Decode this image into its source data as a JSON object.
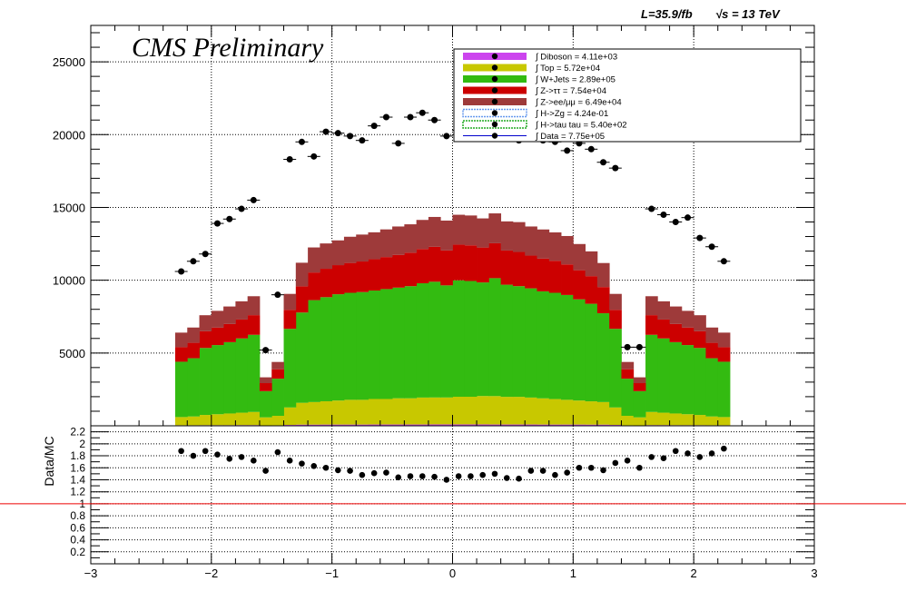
{
  "header": {
    "lumi_label": "L=35.9/fb",
    "energy_label": "√s = 13 TeV",
    "cms_label": "CMS Preliminary"
  },
  "colors": {
    "diboson": "#cc44ee",
    "top": "#c8c800",
    "wjets": "#33bb11",
    "ztautau": "#cc0000",
    "zll": "#9e3a3a",
    "hzg": "#6699ee",
    "htautau": "#22aa22",
    "data": "#000000",
    "ratio_line": "#ee0000"
  },
  "chart_data": [
    {
      "type": "bar",
      "stacked": true,
      "title": "",
      "xlabel": "",
      "ylabel": "",
      "xlim": [
        -3,
        3
      ],
      "ylim": [
        0,
        27500
      ],
      "x_ticks": [
        -3,
        -2,
        -1,
        0,
        1,
        2,
        3
      ],
      "y_ticks": [
        5000,
        10000,
        15000,
        20000,
        25000
      ],
      "x_tick_labels": [
        "−3",
        "−2",
        "−1",
        "0",
        "1",
        "2",
        "3"
      ],
      "y_tick_labels": [
        "5000",
        "10000",
        "15000",
        "20000",
        "25000"
      ],
      "grid": true,
      "legend_placement": "top-right",
      "bin_edges": [
        -2.3,
        -2.2,
        -2.1,
        -2.0,
        -1.9,
        -1.8,
        -1.7,
        -1.6,
        -1.5,
        -1.4,
        -1.3,
        -1.2,
        -1.1,
        -1.0,
        -0.9,
        -0.8,
        -0.7,
        -0.6,
        -0.5,
        -0.4,
        -0.3,
        -0.2,
        -0.1,
        0.0,
        0.1,
        0.2,
        0.3,
        0.4,
        0.5,
        0.6,
        0.7,
        0.8,
        0.9,
        1.0,
        1.1,
        1.2,
        1.3,
        1.4,
        1.5,
        1.6,
        1.7,
        1.8,
        1.9,
        2.0,
        2.1,
        2.2,
        2.3
      ],
      "series": [
        {
          "key": "diboson",
          "legend": "∫ Diboson = 4.11e+03",
          "values": [
            40,
            40,
            45,
            45,
            45,
            50,
            50,
            30,
            35,
            60,
            80,
            80,
            85,
            85,
            85,
            85,
            90,
            90,
            90,
            90,
            90,
            95,
            95,
            95,
            95,
            95,
            90,
            90,
            90,
            90,
            85,
            85,
            85,
            85,
            80,
            80,
            60,
            35,
            30,
            50,
            50,
            45,
            45,
            45,
            40,
            40
          ]
        },
        {
          "key": "top",
          "legend": "∫ Top = 5.72e+04",
          "values": [
            560,
            600,
            700,
            750,
            800,
            850,
            900,
            550,
            650,
            1200,
            1500,
            1550,
            1600,
            1650,
            1700,
            1700,
            1750,
            1750,
            1800,
            1800,
            1850,
            1850,
            1850,
            1900,
            1900,
            1950,
            1950,
            1900,
            1900,
            1850,
            1800,
            1750,
            1700,
            1650,
            1600,
            1550,
            1200,
            650,
            550,
            900,
            850,
            800,
            750,
            700,
            600,
            560
          ]
        },
        {
          "key": "wjets",
          "legend": "∫ W+Jets = 2.89e+05",
          "values": [
            3800,
            4000,
            4600,
            4750,
            4900,
            5100,
            5300,
            1800,
            2550,
            5400,
            6200,
            7000,
            7150,
            7300,
            7350,
            7400,
            7450,
            7550,
            7600,
            7700,
            7850,
            7950,
            7700,
            8000,
            7950,
            7800,
            8100,
            7700,
            7600,
            7500,
            7350,
            7300,
            7200,
            6950,
            6700,
            6100,
            5400,
            2550,
            1800,
            5300,
            5100,
            4900,
            4750,
            4600,
            4000,
            3800
          ]
        },
        {
          "key": "ztautau",
          "legend": "∫ Z->ττ = 7.54e+04",
          "values": [
            1000,
            1060,
            1150,
            1200,
            1250,
            1300,
            1350,
            550,
            650,
            1300,
            1800,
            1900,
            1950,
            2000,
            2050,
            2100,
            2150,
            2200,
            2250,
            2300,
            2350,
            2400,
            2400,
            2450,
            2450,
            2400,
            2400,
            2350,
            2350,
            2250,
            2250,
            2200,
            2100,
            2000,
            1900,
            1800,
            1300,
            650,
            550,
            1350,
            1300,
            1250,
            1200,
            1150,
            1060,
            1000
          ]
        },
        {
          "key": "zll",
          "legend": "∫ Z->ee/μμ = 6.49e+04",
          "values": [
            1000,
            1050,
            1100,
            1150,
            1200,
            1250,
            1300,
            400,
            500,
            1100,
            1620,
            1720,
            1740,
            1700,
            1800,
            1850,
            1850,
            1900,
            1950,
            1950,
            2000,
            2050,
            2050,
            2050,
            2050,
            2000,
            2050,
            2000,
            2050,
            2000,
            2000,
            1950,
            1950,
            1800,
            1700,
            1650,
            1100,
            500,
            400,
            1300,
            1250,
            1200,
            1150,
            1100,
            1050,
            1000
          ]
        },
        {
          "key": "hzg",
          "legend": "∫ H->Zg = 4.24e-01"
        },
        {
          "key": "htautau",
          "legend": "∫ H->tau tau = 5.40e+02"
        }
      ],
      "data_points": {
        "legend": "∫ Data = 7.75e+05",
        "values": [
          10600,
          11300,
          11800,
          13900,
          14200,
          14900,
          15500,
          5200,
          9000,
          18300,
          19500,
          18500,
          20200,
          20100,
          19900,
          19600,
          20600,
          21200,
          19400,
          21200,
          21500,
          21000,
          19900,
          20300,
          20100,
          21000,
          20400,
          20300,
          19600,
          19800,
          19600,
          19500,
          18900,
          19400,
          19000,
          18100,
          17700,
          5400,
          5400,
          14900,
          14500,
          14000,
          14300,
          12900,
          12300,
          11300
        ]
      }
    },
    {
      "type": "scatter",
      "title": "",
      "xlabel": "",
      "ylabel": "Data/MC",
      "xlim": [
        -3,
        3
      ],
      "ylim": [
        0,
        2.3
      ],
      "x_ticks": [
        -3,
        -2,
        -1,
        0,
        1,
        2,
        3
      ],
      "x_tick_labels": [
        "−3",
        "−2",
        "−1",
        "0",
        "1",
        "2",
        "3"
      ],
      "y_ticks": [
        0.2,
        0.4,
        0.6,
        0.8,
        1,
        1.2,
        1.4,
        1.6,
        1.8,
        2,
        2.2
      ],
      "y_tick_labels": [
        "0.2",
        "0.4",
        "0.6",
        "0.8",
        "1",
        "1.2",
        "1.4",
        "1.6",
        "1.8",
        "2",
        "2.2"
      ],
      "grid": true,
      "reference_line": 1.0,
      "values": [
        1.88,
        1.8,
        1.88,
        1.82,
        1.75,
        1.78,
        1.72,
        1.55,
        1.86,
        1.72,
        1.67,
        1.63,
        1.6,
        1.56,
        1.55,
        1.48,
        1.51,
        1.52,
        1.44,
        1.46,
        1.46,
        1.45,
        1.4,
        1.46,
        1.46,
        1.48,
        1.5,
        1.43,
        1.42,
        1.55,
        1.55,
        1.48,
        1.52,
        1.6,
        1.6,
        1.56,
        1.68,
        1.72,
        1.6,
        1.78,
        1.76,
        1.88,
        1.84,
        1.78,
        1.84,
        1.92
      ]
    }
  ]
}
